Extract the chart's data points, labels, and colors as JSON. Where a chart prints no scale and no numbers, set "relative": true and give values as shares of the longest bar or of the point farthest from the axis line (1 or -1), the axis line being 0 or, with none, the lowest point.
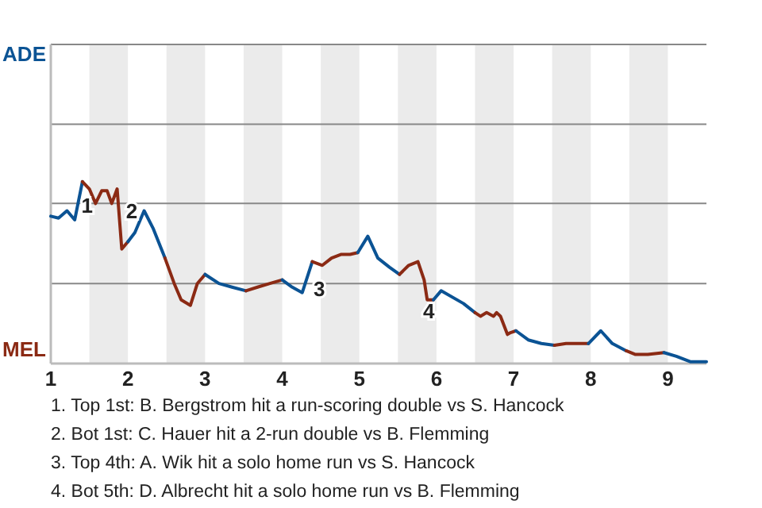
{
  "chart_data": {
    "type": "line",
    "relative": true,
    "xlim": [
      1,
      9.5
    ],
    "xticks": [
      1,
      2,
      3,
      4,
      5,
      6,
      7,
      8,
      9
    ],
    "marker": "none",
    "line_style": "solid",
    "ref_lines": [
      {
        "axis": "y",
        "value": 0.44,
        "color": "#888888"
      },
      {
        "axis": "y",
        "value": 0.88,
        "color": "#888888"
      }
    ],
    "bands": [
      {
        "axis": "x",
        "from": 1.5,
        "to": 2,
        "color": "#ebebeb"
      },
      {
        "axis": "x",
        "from": 2.5,
        "to": 3,
        "color": "#ebebeb"
      },
      {
        "axis": "x",
        "from": 3.5,
        "to": 4,
        "color": "#ebebeb"
      },
      {
        "axis": "x",
        "from": 4.5,
        "to": 5,
        "color": "#ebebeb"
      },
      {
        "axis": "x",
        "from": 5.5,
        "to": 6,
        "color": "#ebebeb"
      },
      {
        "axis": "x",
        "from": 6.5,
        "to": 7,
        "color": "#ebebeb"
      },
      {
        "axis": "x",
        "from": 7.5,
        "to": 8,
        "color": "#ebebeb"
      },
      {
        "axis": "x",
        "from": 8.5,
        "to": 9,
        "color": "#ebebeb"
      }
    ],
    "series": [
      {
        "color": "#0b5394",
        "x": [
          1,
          1.1,
          1.21,
          1.31,
          1.41
        ],
        "values": [
          0.81,
          0.8,
          0.84,
          0.79,
          1
        ]
      },
      {
        "color": "#8b2a14",
        "x": [
          1.41,
          1.5,
          1.58,
          1.66,
          1.73,
          1.79,
          1.86,
          1.92,
          2
        ],
        "values": [
          1,
          0.96,
          0.88,
          0.95,
          0.95,
          0.88,
          0.96,
          0.63,
          0.67
        ]
      },
      {
        "color": "#0b5394",
        "x": [
          2,
          2.09,
          2.21,
          2.33,
          2.48
        ],
        "values": [
          0.67,
          0.72,
          0.84,
          0.74,
          0.58
        ]
      },
      {
        "color": "#8b2a14",
        "x": [
          2.48,
          2.6,
          2.69,
          2.81,
          2.9,
          3
        ],
        "values": [
          0.58,
          0.44,
          0.35,
          0.32,
          0.44,
          0.49
        ]
      },
      {
        "color": "#0b5394",
        "x": [
          3,
          3.18,
          3.35,
          3.53
        ],
        "values": [
          0.49,
          0.44,
          0.42,
          0.4
        ]
      },
      {
        "color": "#8b2a14",
        "x": [
          3.53,
          3.68,
          3.84,
          4
        ],
        "values": [
          0.4,
          0.42,
          0.44,
          0.46
        ]
      },
      {
        "color": "#0b5394",
        "x": [
          4,
          4.13,
          4.26,
          4.39
        ],
        "values": [
          0.46,
          0.42,
          0.39,
          0.56
        ]
      },
      {
        "color": "#8b2a14",
        "x": [
          4.39,
          4.52,
          4.64,
          4.76,
          4.88,
          4.98
        ],
        "values": [
          0.56,
          0.54,
          0.58,
          0.6,
          0.6,
          0.61
        ]
      },
      {
        "color": "#0b5394",
        "x": [
          4.98,
          5.11,
          5.24,
          5.39,
          5.52
        ],
        "values": [
          0.61,
          0.7,
          0.58,
          0.53,
          0.49
        ]
      },
      {
        "color": "#8b2a14",
        "x": [
          5.52,
          5.64,
          5.76,
          5.84,
          5.88,
          5.96
        ],
        "values": [
          0.49,
          0.54,
          0.56,
          0.46,
          0.35,
          0.35
        ]
      },
      {
        "color": "#0b5394",
        "x": [
          5.96,
          6.06,
          6.35,
          6.5
        ],
        "values": [
          0.35,
          0.4,
          0.33,
          0.28
        ]
      },
      {
        "color": "#8b2a14",
        "x": [
          6.5,
          6.57,
          6.65,
          6.74,
          6.78,
          6.83,
          6.92,
          6.96,
          7.03
        ],
        "values": [
          0.28,
          0.26,
          0.28,
          0.26,
          0.28,
          0.26,
          0.16,
          0.17,
          0.18
        ]
      },
      {
        "color": "#0b5394",
        "x": [
          7.03,
          7.19,
          7.36,
          7.53
        ],
        "values": [
          0.18,
          0.13,
          0.11,
          0.1
        ]
      },
      {
        "color": "#8b2a14",
        "x": [
          7.53,
          7.68,
          7.97
        ],
        "values": [
          0.1,
          0.11,
          0.11
        ]
      },
      {
        "color": "#0b5394",
        "x": [
          7.97,
          8.13,
          8.28,
          8.46
        ],
        "values": [
          0.11,
          0.18,
          0.11,
          0.07
        ]
      },
      {
        "color": "#8b2a14",
        "x": [
          8.46,
          8.58,
          8.74,
          8.95
        ],
        "values": [
          0.07,
          0.05,
          0.05,
          0.06
        ]
      },
      {
        "color": "#0b5394",
        "x": [
          8.95,
          9.11,
          9.29,
          9.5
        ],
        "values": [
          0.06,
          0.04,
          0.01,
          0.01
        ]
      }
    ],
    "annotations": [
      "ADE",
      "MEL",
      {
        "text": "1",
        "x": 1.47,
        "y": 0.86
      },
      {
        "text": "2",
        "x": 2.05,
        "y": 0.83
      },
      {
        "text": "3",
        "x": 4.48,
        "y": 0.4
      },
      {
        "text": "4",
        "x": 5.9,
        "y": 0.28
      },
      "1. Top 1st: B. Bergstrom hit a run-scoring double vs S. Hancock",
      "2. Bot 1st: C. Hauer hit a 2-run double vs B. Flemming",
      "3. Top 4th: A. Wik hit a solo home run vs S. Hancock",
      "4. Bot 5th: D. Albrecht hit a solo home run vs B. Flemming"
    ]
  }
}
